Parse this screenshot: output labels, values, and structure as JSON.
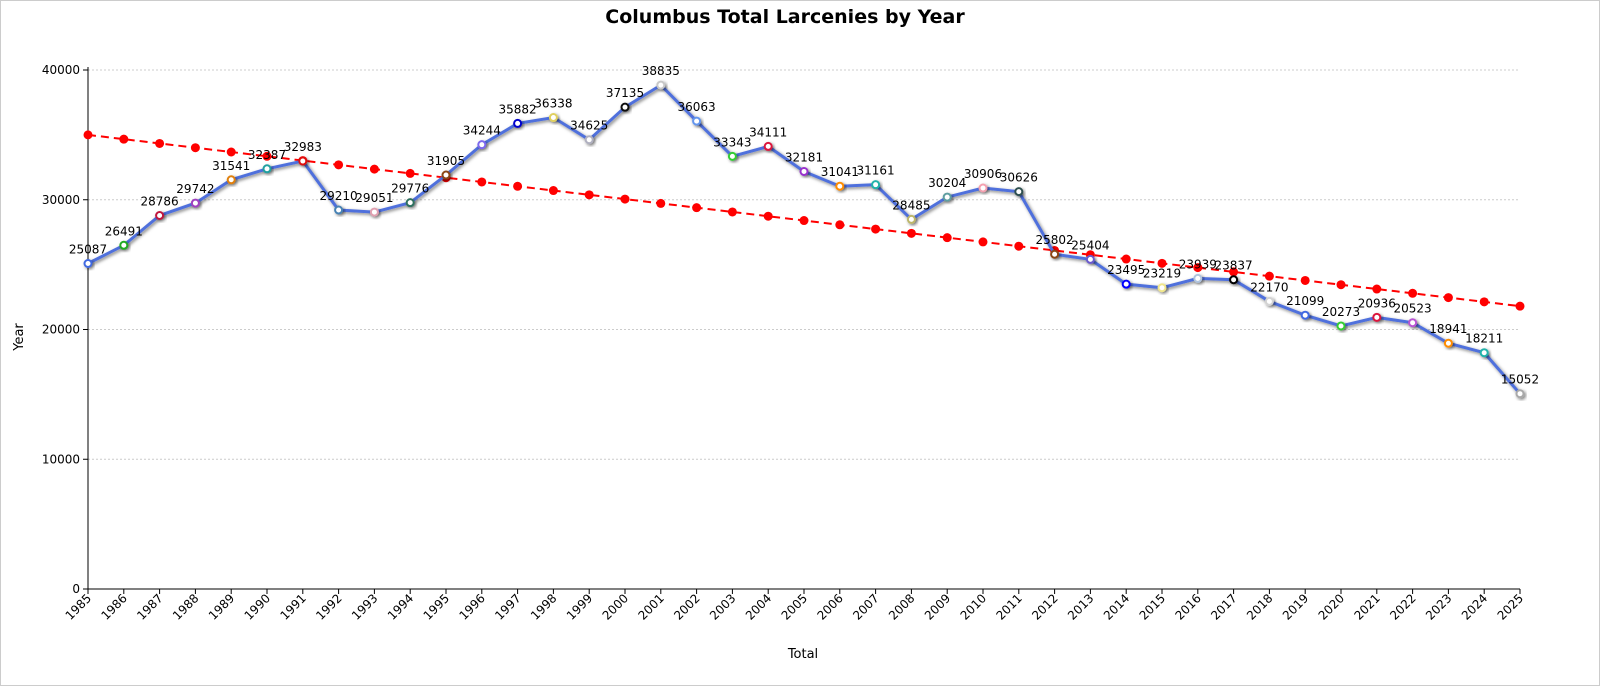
{
  "chart_data": {
    "type": "line",
    "title": "Columbus Total Larcenies by Year",
    "xlabel": "Total",
    "ylabel": "Year",
    "ylim": [
      0,
      40000
    ],
    "yticks": [
      0,
      10000,
      20000,
      30000,
      40000
    ],
    "grid": true,
    "x": [
      1985,
      1986,
      1987,
      1988,
      1989,
      1990,
      1991,
      1992,
      1993,
      1994,
      1995,
      1996,
      1997,
      1998,
      1999,
      2000,
      2001,
      2002,
      2003,
      2004,
      2005,
      2006,
      2007,
      2008,
      2009,
      2010,
      2011,
      2012,
      2013,
      2014,
      2015,
      2016,
      2017,
      2018,
      2019,
      2020,
      2021,
      2022,
      2023,
      2024,
      2025
    ],
    "series": [
      {
        "values": [
          25087,
          26491,
          28786,
          29742,
          31541,
          32387,
          32983,
          29210,
          29051,
          29776,
          31905,
          34244,
          35882,
          36338,
          34625,
          37135,
          38835,
          36063,
          33343,
          34111,
          32181,
          31041,
          31161,
          28485,
          30204,
          30906,
          30626,
          25802,
          25404,
          23495,
          23219,
          23939,
          23837,
          22170,
          21099,
          20273,
          20936,
          20523,
          18941,
          18211,
          15052
        ],
        "color": "#4f6fdc"
      },
      {
        "trend": true,
        "style": "dashed",
        "color": "#ff0000",
        "start": 35000,
        "end": 21800
      }
    ],
    "marker_colors": [
      "#4169e1",
      "#22aa22",
      "#c0143c",
      "#a040c0",
      "#e08010",
      "#20a0a0",
      "#e01010",
      "#4682b4",
      "#e0a0b0",
      "#2f6f5f",
      "#8b4513",
      "#7b68ee",
      "#0000cd",
      "#e0d060",
      "#b0b0c0",
      "#111111",
      "#c8c8c8",
      "#6495ed",
      "#32cd32",
      "#dc143c",
      "#9932cc",
      "#ff8c00",
      "#20b2aa",
      "#bdb76b",
      "#5f9ea0",
      "#f4a0b0",
      "#2f4f4f",
      "#8b4513",
      "#6a5acd",
      "#0000ff",
      "#f0e68c",
      "#b0c4de",
      "#000000",
      "#d3d3d3",
      "#4169e1",
      "#32cd32",
      "#dc143c",
      "#ba55d3",
      "#ff8c00",
      "#20b2aa",
      "#a9a9a9"
    ]
  }
}
